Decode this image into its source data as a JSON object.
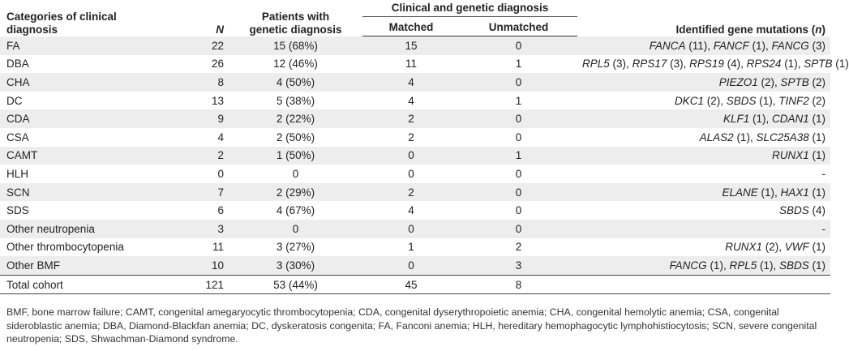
{
  "headers": {
    "category": "Categories of clinical diagnosis",
    "category_line1": "Categories of clinical",
    "category_line2": "diagnosis",
    "n": "N",
    "patients_line1": "Patients with",
    "patients_line2": "genetic diagnosis",
    "group": "Clinical and genetic diagnosis",
    "matched": "Matched",
    "unmatched": "Unmatched",
    "genes_prefix": "Identified gene mutations (",
    "genes_n": "n",
    "genes_suffix": ")"
  },
  "rows": [
    {
      "category": "FA",
      "n": "22",
      "patients": "15 (68%)",
      "matched": "15",
      "unmatched": "0",
      "genes": [
        {
          "gene": "FANCA",
          "count": " (11), "
        },
        {
          "gene": "FANCF",
          "count": " (1), "
        },
        {
          "gene": "FANCG",
          "count": " (3)"
        }
      ]
    },
    {
      "category": "DBA",
      "n": "26",
      "patients": "12 (46%)",
      "matched": "11",
      "unmatched": "1",
      "genes": [
        {
          "gene": "RPL5",
          "count": " (3), "
        },
        {
          "gene": "RPS17",
          "count": " (3), "
        },
        {
          "gene": "RPS19",
          "count": " (4), "
        },
        {
          "gene": "RPS24",
          "count": " (1), "
        },
        {
          "gene": "SPTB",
          "count": " (1)"
        }
      ]
    },
    {
      "category": "CHA",
      "n": "8",
      "patients": "4 (50%)",
      "matched": "4",
      "unmatched": "0",
      "genes": [
        {
          "gene": "PIEZO1",
          "count": " (2), "
        },
        {
          "gene": "SPTB",
          "count": " (2)"
        }
      ]
    },
    {
      "category": "DC",
      "n": "13",
      "patients": "5 (38%)",
      "matched": "4",
      "unmatched": "1",
      "genes": [
        {
          "gene": "DKC1",
          "count": " (2), "
        },
        {
          "gene": "SBDS",
          "count": " (1), "
        },
        {
          "gene": "TINF2",
          "count": " (2)"
        }
      ]
    },
    {
      "category": "CDA",
      "n": "9",
      "patients": "2 (22%)",
      "matched": "2",
      "unmatched": "0",
      "genes": [
        {
          "gene": "KLF1",
          "count": " (1), "
        },
        {
          "gene": "CDAN1",
          "count": " (1)"
        }
      ]
    },
    {
      "category": "CSA",
      "n": "4",
      "patients": "2 (50%)",
      "matched": "2",
      "unmatched": "0",
      "genes": [
        {
          "gene": "ALAS2",
          "count": " (1), "
        },
        {
          "gene": "SLC25A38",
          "count": " (1)"
        }
      ]
    },
    {
      "category": "CAMT",
      "n": "2",
      "patients": "1 (50%)",
      "matched": "0",
      "unmatched": "1",
      "genes": [
        {
          "gene": "RUNX1",
          "count": " (1)"
        }
      ]
    },
    {
      "category": "HLH",
      "n": "0",
      "patients": "0",
      "matched": "0",
      "unmatched": "0",
      "genes_text": "-"
    },
    {
      "category": "SCN",
      "n": "7",
      "patients": "2 (29%)",
      "matched": "2",
      "unmatched": "0",
      "genes": [
        {
          "gene": "ELANE",
          "count": " (1), "
        },
        {
          "gene": "HAX1",
          "count": " (1)"
        }
      ]
    },
    {
      "category": "SDS",
      "n": "6",
      "patients": "4 (67%)",
      "matched": "4",
      "unmatched": "0",
      "genes": [
        {
          "gene": "SBDS",
          "count": " (4)"
        }
      ]
    },
    {
      "category": "Other neutropenia",
      "n": "3",
      "patients": "0",
      "matched": "0",
      "unmatched": "0",
      "genes_text": "-"
    },
    {
      "category": "Other thrombocytopenia",
      "n": "11",
      "patients": "3 (27%)",
      "matched": "1",
      "unmatched": "2",
      "genes": [
        {
          "gene": "RUNX1",
          "count": " (2), "
        },
        {
          "gene": "VWF",
          "count": " (1)"
        }
      ]
    },
    {
      "category": "Other BMF",
      "n": "10",
      "patients": "3 (30%)",
      "matched": "0",
      "unmatched": "3",
      "genes": [
        {
          "gene": "FANCG",
          "count": " (1), "
        },
        {
          "gene": "RPL5",
          "count": " (1), "
        },
        {
          "gene": "SBDS",
          "count": " (1)"
        }
      ]
    }
  ],
  "total": {
    "category": "Total cohort",
    "n": "121",
    "patients": "53 (44%)",
    "matched": "45",
    "unmatched": "8"
  },
  "footnote": "BMF, bone marrow failure; CAMT, congenital amegaryocytic thrombocytopenia; CDA, congenital dyserythropoietic anemia; CHA, congenital hemolytic anemia; CSA, congenital sideroblastic anemia; DBA, Diamond-Blackfan anemia; DC, dyskeratosis congenita; FA, Fanconi anemia; HLH, hereditary hemophagocytic lymphohistiocytosis; SCN, severe congenital neutropenia; SDS, Shwachman-Diamond syndrome."
}
